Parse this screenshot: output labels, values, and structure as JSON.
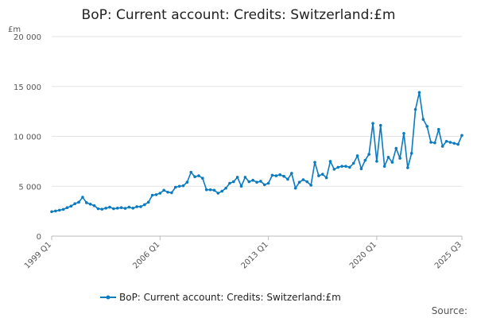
{
  "chart_data": {
    "type": "line",
    "title": "BoP: Current account: Credits: Switzerland:£m",
    "y_unit": "£m",
    "xlabel": "",
    "ylabel": "",
    "ylim": [
      0,
      20000
    ],
    "y_ticks": [
      0,
      5000,
      10000,
      15000,
      20000
    ],
    "y_tick_labels": [
      "0",
      "5 000",
      "10 000",
      "15 000",
      "20 000"
    ],
    "x_tick_labels": [
      "1999 Q1",
      "2006 Q1",
      "2013 Q1",
      "2020 Q1",
      "2025 Q3"
    ],
    "x_tick_indices": [
      0,
      28,
      56,
      84,
      106
    ],
    "grid": true,
    "legend_position": "bottom",
    "source_label": "Source:",
    "color": "#0b7bc0",
    "series": [
      {
        "name": "BoP: Current account: Credits: Switzerland:£m",
        "values": [
          2450,
          2520,
          2600,
          2680,
          2850,
          3000,
          3250,
          3400,
          3900,
          3350,
          3200,
          3050,
          2750,
          2700,
          2800,
          2900,
          2750,
          2800,
          2850,
          2780,
          2900,
          2800,
          2950,
          2950,
          3150,
          3400,
          4100,
          4150,
          4300,
          4600,
          4400,
          4350,
          4900,
          5000,
          5050,
          5400,
          6400,
          5950,
          6050,
          5800,
          4650,
          4650,
          4600,
          4300,
          4500,
          4800,
          5300,
          5450,
          5900,
          5000,
          5900,
          5450,
          5600,
          5400,
          5500,
          5150,
          5300,
          6100,
          6050,
          6150,
          6000,
          5700,
          6300,
          4800,
          5400,
          5650,
          5450,
          5100,
          7400,
          6050,
          6200,
          5850,
          7500,
          6700,
          6900,
          7000,
          7000,
          6900,
          7300,
          8050,
          6750,
          7600,
          8200,
          11300,
          7500,
          11100,
          7000,
          7900,
          7400,
          8800,
          7800,
          10300,
          6850,
          8300,
          12700,
          14400,
          11700,
          11000,
          9400,
          9350,
          10700,
          9000,
          9500,
          9400,
          9300,
          9200,
          10100
        ]
      }
    ]
  }
}
